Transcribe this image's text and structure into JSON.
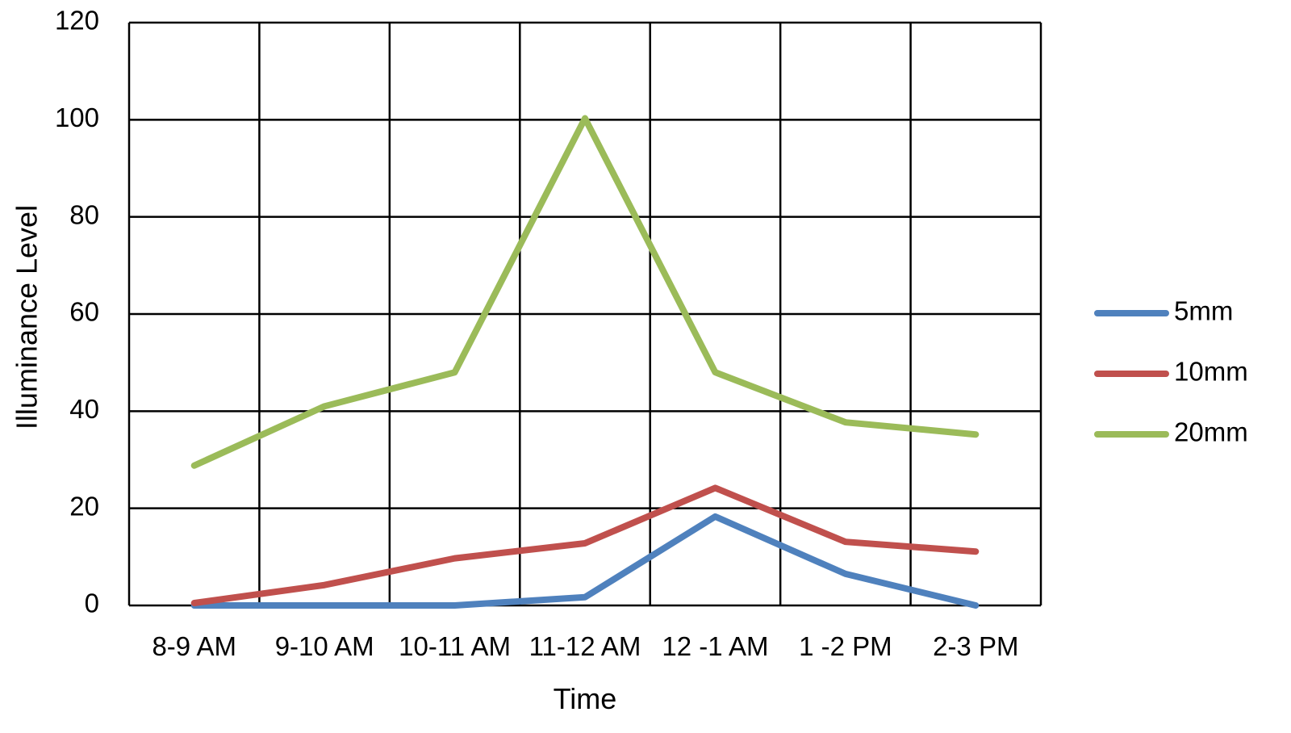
{
  "chart_data": {
    "type": "line",
    "title": "",
    "xlabel": "Time",
    "ylabel": "Illuminance Level",
    "categories": [
      "8-9 AM",
      "9-10 AM",
      "10-11 AM",
      "11-12 AM",
      "12 -1 AM",
      "1 -2 PM",
      "2-3 PM"
    ],
    "ylim": [
      0,
      120
    ],
    "yticks": [
      0,
      20,
      40,
      60,
      80,
      100,
      120
    ],
    "grid": true,
    "legend_position": "right",
    "series": [
      {
        "name": "5mm",
        "color": "#4F81BD",
        "values": [
          0,
          0,
          0,
          1.7,
          18.3,
          6.5,
          0
        ]
      },
      {
        "name": "10mm",
        "color": "#C0504D",
        "values": [
          0.5,
          4.2,
          9.7,
          12.8,
          24.2,
          13.1,
          11.1
        ]
      },
      {
        "name": "20mm",
        "color": "#9BBB59",
        "values": [
          28.8,
          41,
          48,
          100.3,
          48,
          37.7,
          35.2
        ]
      }
    ]
  }
}
